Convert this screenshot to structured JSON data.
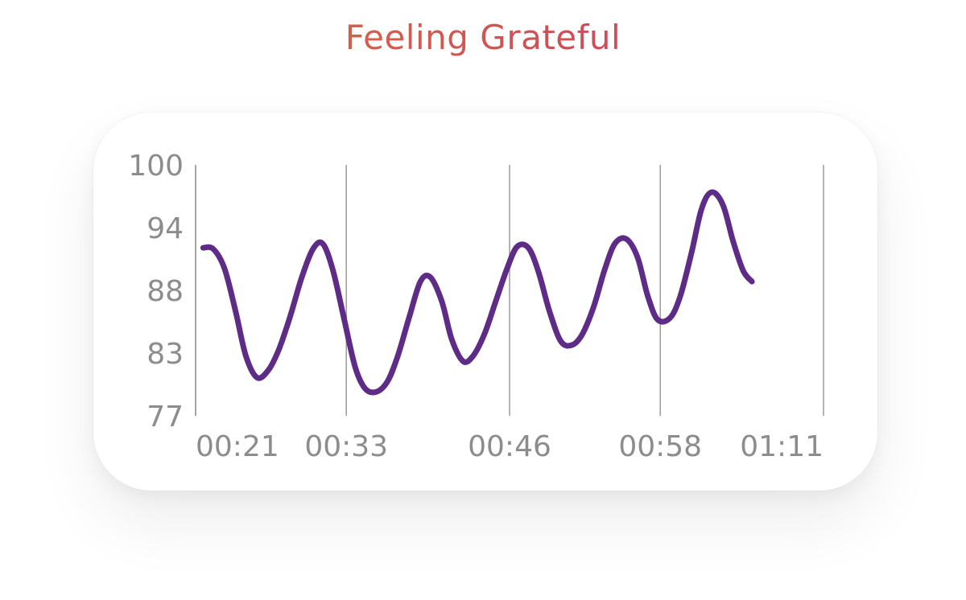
{
  "title": "Feeling Grateful",
  "colors": {
    "line": "#5e2b87",
    "grid": "#9a9a9a",
    "tick_text": "#8c8c8c",
    "title_gradient": [
      "#e0783a",
      "#cc4e58",
      "#b94464"
    ]
  },
  "chart_data": {
    "type": "line",
    "title": "Feeling Grateful",
    "xlabel": "",
    "ylabel": "",
    "ylim": [
      77,
      100
    ],
    "y_ticks": [
      "100",
      "94",
      "88",
      "83",
      "77"
    ],
    "x_ticks": [
      "00:21",
      "00:33",
      "00:46",
      "00:58",
      "01:11"
    ],
    "x_tick_positions": [
      21,
      33,
      46,
      58,
      71
    ],
    "xlim": [
      21,
      71
    ],
    "grid": "vertical lines at x ticks",
    "series": [
      {
        "values": [
          [
            21.6,
            92.4
          ],
          [
            22.4,
            92.3
          ],
          [
            23.3,
            90.5
          ],
          [
            24.2,
            86.5
          ],
          [
            25.0,
            82.5
          ],
          [
            25.9,
            80.5
          ],
          [
            26.8,
            81.2
          ],
          [
            27.6,
            83.0
          ],
          [
            28.5,
            86.0
          ],
          [
            29.4,
            89.5
          ],
          [
            30.3,
            92.2
          ],
          [
            31.1,
            92.8
          ],
          [
            31.9,
            90.5
          ],
          [
            32.8,
            86.0
          ],
          [
            33.7,
            81.5
          ],
          [
            34.5,
            79.5
          ],
          [
            35.4,
            79.2
          ],
          [
            36.3,
            80.2
          ],
          [
            37.1,
            82.5
          ],
          [
            38.0,
            86.0
          ],
          [
            38.9,
            89.3
          ],
          [
            39.7,
            89.7
          ],
          [
            40.6,
            87.5
          ],
          [
            41.4,
            84.0
          ],
          [
            42.3,
            82.0
          ],
          [
            43.1,
            82.5
          ],
          [
            44.0,
            84.5
          ],
          [
            44.9,
            87.5
          ],
          [
            45.8,
            90.5
          ],
          [
            46.6,
            92.5
          ],
          [
            47.5,
            92.4
          ],
          [
            48.3,
            90.2
          ],
          [
            49.2,
            86.5
          ],
          [
            50.1,
            83.8
          ],
          [
            51.0,
            83.5
          ],
          [
            51.8,
            84.5
          ],
          [
            52.7,
            87.0
          ],
          [
            53.6,
            90.5
          ],
          [
            54.4,
            92.8
          ],
          [
            55.3,
            93.2
          ],
          [
            56.2,
            91.5
          ],
          [
            57.0,
            88.0
          ],
          [
            57.8,
            85.8
          ],
          [
            58.8,
            86.0
          ],
          [
            59.6,
            88.0
          ],
          [
            60.5,
            92.0
          ],
          [
            61.3,
            96.0
          ],
          [
            62.1,
            97.5
          ],
          [
            63.0,
            96.3
          ],
          [
            63.8,
            93.0
          ],
          [
            64.6,
            90.3
          ],
          [
            65.3,
            89.3
          ]
        ]
      }
    ]
  }
}
